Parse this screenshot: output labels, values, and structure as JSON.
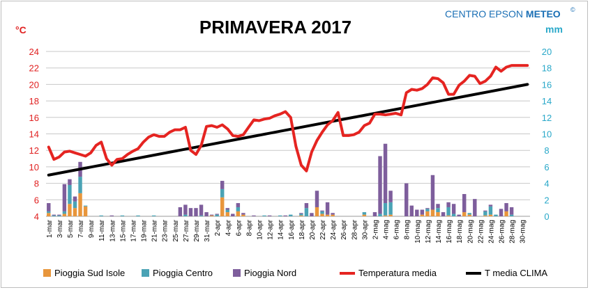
{
  "brand": {
    "prefix": "CENTRO EPSON ",
    "bold": "METEO",
    "symbol": "©"
  },
  "chart_data": {
    "type": "bar",
    "title": "PRIMAVERA 2017",
    "ylabel_left": "°C",
    "ylabel_right": "mm",
    "ylim_left": [
      4,
      24
    ],
    "ylim_right": [
      0,
      20
    ],
    "yticks_left": [
      "4",
      "6",
      "8",
      "10",
      "12",
      "14",
      "16",
      "18",
      "20",
      "22",
      "24"
    ],
    "yticks_right": [
      "0",
      "2",
      "4",
      "6",
      "8",
      "10",
      "12",
      "14",
      "16",
      "18",
      "20"
    ],
    "grid": true,
    "legend_position": "bottom",
    "colors": {
      "sud": "#e8963c",
      "centro": "#4aa3b5",
      "nord": "#7e5e9c",
      "temp": "#e52421",
      "clima": "#000000",
      "left_axis": "#e02020",
      "right_axis": "#29a8c9"
    },
    "x_tick_labels": [
      "1-mar",
      "3-mar",
      "5-mar",
      "7-mar",
      "9-mar",
      "11-mar",
      "13-mar",
      "15-mar",
      "17-mar",
      "19-mar",
      "21-mar",
      "23-mar",
      "25-mar",
      "27-mar",
      "29-mar",
      "31-mar",
      "2-apr",
      "4-apr",
      "6-apr",
      "8-apr",
      "10-apr",
      "12-apr",
      "14-apr",
      "16-apr",
      "18-apr",
      "20-apr",
      "22-apr",
      "24-apr",
      "26-apr",
      "28-apr",
      "30-apr",
      "2-mag",
      "4-mag",
      "6-mag",
      "8-mag",
      "10-mag",
      "12-mag",
      "14-mag",
      "16-mag",
      "18-mag",
      "20-mag",
      "22-mag",
      "24-mag",
      "26-mag",
      "28-mag",
      "30-mag"
    ],
    "days": 92,
    "series": [
      {
        "name": "Pioggia Sud Isole",
        "kind": "bar",
        "axis": "right",
        "values": [
          0.4,
          0,
          0,
          0.3,
          1.5,
          1.0,
          2.8,
          1.2,
          0,
          0,
          0,
          0,
          0,
          0,
          0,
          0,
          0,
          0,
          0,
          0,
          0,
          0,
          0,
          0,
          0,
          0,
          0,
          0,
          0,
          0,
          0,
          0.1,
          0,
          2.3,
          0.5,
          0,
          0.6,
          0.2,
          0,
          0,
          0,
          0,
          0,
          0,
          0,
          0,
          0,
          0,
          0.1,
          0,
          0,
          1.1,
          0.3,
          0.2,
          0.2,
          0,
          0,
          0,
          0,
          0,
          0.2,
          0,
          0,
          0,
          0.1,
          0.2,
          0,
          0,
          0,
          0,
          0,
          0.2,
          0.6,
          0.8,
          0.5,
          0,
          0.1,
          0,
          0,
          0.5,
          0.2,
          0,
          0,
          0.1,
          0.2,
          0,
          0,
          0.6,
          0,
          0,
          0,
          0
        ]
      },
      {
        "name": "Pioggia Centro",
        "kind": "bar",
        "axis": "right",
        "values": [
          0.2,
          0.1,
          0.1,
          0.3,
          2.3,
          0.8,
          2.0,
          0.1,
          0,
          0,
          0.1,
          0,
          0,
          0,
          0.1,
          0,
          0,
          0.1,
          0,
          0,
          0.1,
          0,
          0,
          0,
          0,
          0,
          0.2,
          0,
          0,
          0.1,
          0,
          0,
          0.2,
          1.0,
          0.3,
          0,
          0.5,
          0,
          0,
          0,
          0,
          0.1,
          0,
          0,
          0.1,
          0,
          0.2,
          0,
          0.2,
          1.0,
          0,
          0,
          0.3,
          0,
          0,
          0,
          0,
          0,
          0,
          0,
          0.3,
          0,
          0,
          0.3,
          1.5,
          1.5,
          0,
          0,
          0,
          0,
          0,
          0,
          0.3,
          0,
          0.5,
          0,
          1.0,
          0.3,
          0,
          0,
          0.2,
          0,
          0,
          0.5,
          1.0,
          0.2,
          0,
          0,
          0.2,
          0,
          0,
          0
        ]
      },
      {
        "name": "Pioggia Nord",
        "kind": "bar",
        "axis": "right",
        "values": [
          1.0,
          0.1,
          0.1,
          3.3,
          0.7,
          0.6,
          1.8,
          0,
          0,
          0,
          0,
          0,
          0.1,
          0,
          0,
          0,
          0,
          0,
          0,
          0,
          0,
          0,
          0,
          0,
          0,
          1.1,
          1.2,
          1.0,
          1.0,
          1.3,
          0.5,
          0.1,
          0.1,
          1.0,
          0.2,
          0.3,
          0.5,
          0.2,
          0,
          0.1,
          0,
          0,
          0.1,
          0,
          0,
          0.1,
          0,
          0,
          0.1,
          0.6,
          0.4,
          2.0,
          0.1,
          1.5,
          0.2,
          0,
          0,
          0,
          0,
          0,
          0,
          0,
          0.5,
          7.0,
          7.2,
          1.4,
          0,
          0,
          4.0,
          1.3,
          0.8,
          0.6,
          0.1,
          4.2,
          0.5,
          0.5,
          0.6,
          1.2,
          0.2,
          2.2,
          0,
          2.1,
          0,
          0.1,
          0.2,
          0,
          0.9,
          1.0,
          0.9,
          0,
          0,
          0
        ]
      },
      {
        "name": "Temperatura media",
        "kind": "line",
        "axis": "left",
        "values": [
          12.4,
          10.9,
          11.2,
          11.8,
          11.9,
          11.7,
          11.5,
          11.3,
          11.7,
          12.6,
          13.0,
          11.0,
          10.2,
          10.9,
          11.0,
          11.5,
          11.9,
          12.2,
          13.0,
          13.6,
          13.9,
          13.7,
          13.7,
          14.2,
          14.5,
          14.5,
          14.8,
          12.0,
          11.5,
          12.6,
          14.9,
          15.0,
          14.8,
          15.1,
          14.6,
          13.8,
          13.7,
          13.9,
          14.8,
          15.7,
          15.6,
          15.8,
          15.9,
          16.2,
          16.4,
          16.7,
          16.0,
          12.5,
          10.2,
          9.5,
          11.8,
          13.2,
          14.2,
          15.1,
          15.6,
          16.6,
          13.8,
          13.8,
          13.9,
          14.2,
          15.0,
          15.3,
          16.4,
          16.4,
          16.3,
          16.4,
          16.5,
          16.3,
          19.0,
          19.4,
          19.3,
          19.5,
          20.0,
          20.8,
          20.7,
          20.2,
          18.8,
          18.8,
          19.9,
          20.4,
          21.1,
          21.0,
          20.1,
          20.4,
          21.0,
          22.1,
          21.6,
          22.1,
          22.3,
          22.3,
          22.3,
          22.3
        ]
      },
      {
        "name": "T media CLIMA",
        "kind": "line",
        "axis": "left",
        "from": 9.0,
        "to": 20.0
      }
    ]
  }
}
